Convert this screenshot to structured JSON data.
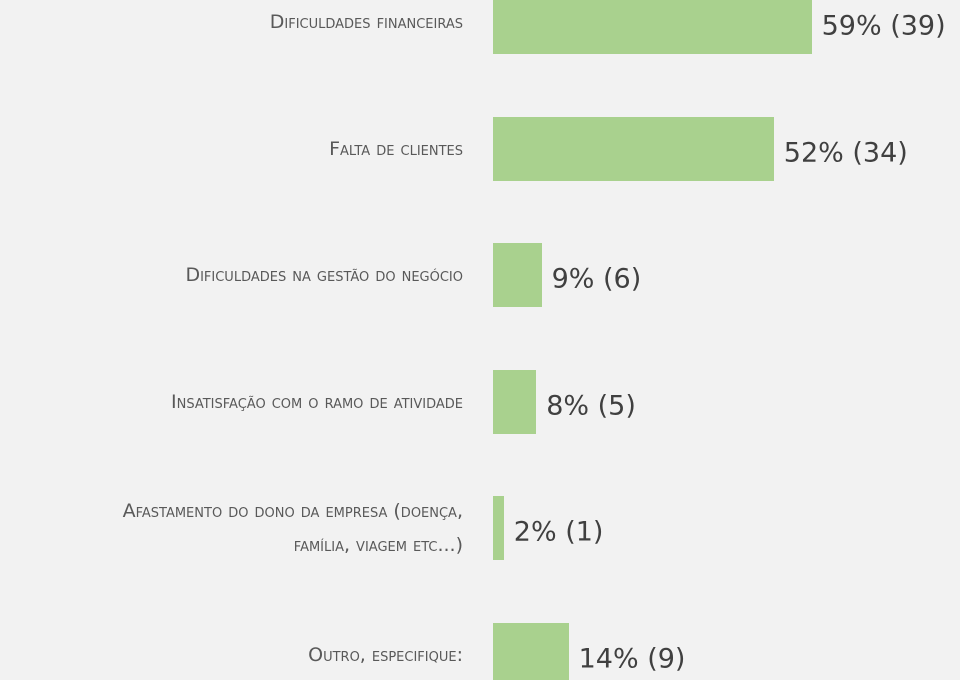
{
  "chart_data": {
    "type": "barh",
    "categories": [
      "Dificuldades financeiras",
      "Falta de clientes",
      "Dificuldades na gestão do negócio",
      "Insatisfação com o ramo de atividade",
      "Afastamento do dono da empresa (doença, família, viagem etc...)",
      "Outro, especifique:"
    ],
    "values": [
      59,
      52,
      9,
      8,
      2,
      14
    ],
    "value_labels": [
      "59% (39)",
      "52% (34)",
      "9% (6)",
      "8% (5)",
      "2% (1)",
      "14% (9)"
    ],
    "color": "#a9d18e"
  }
}
